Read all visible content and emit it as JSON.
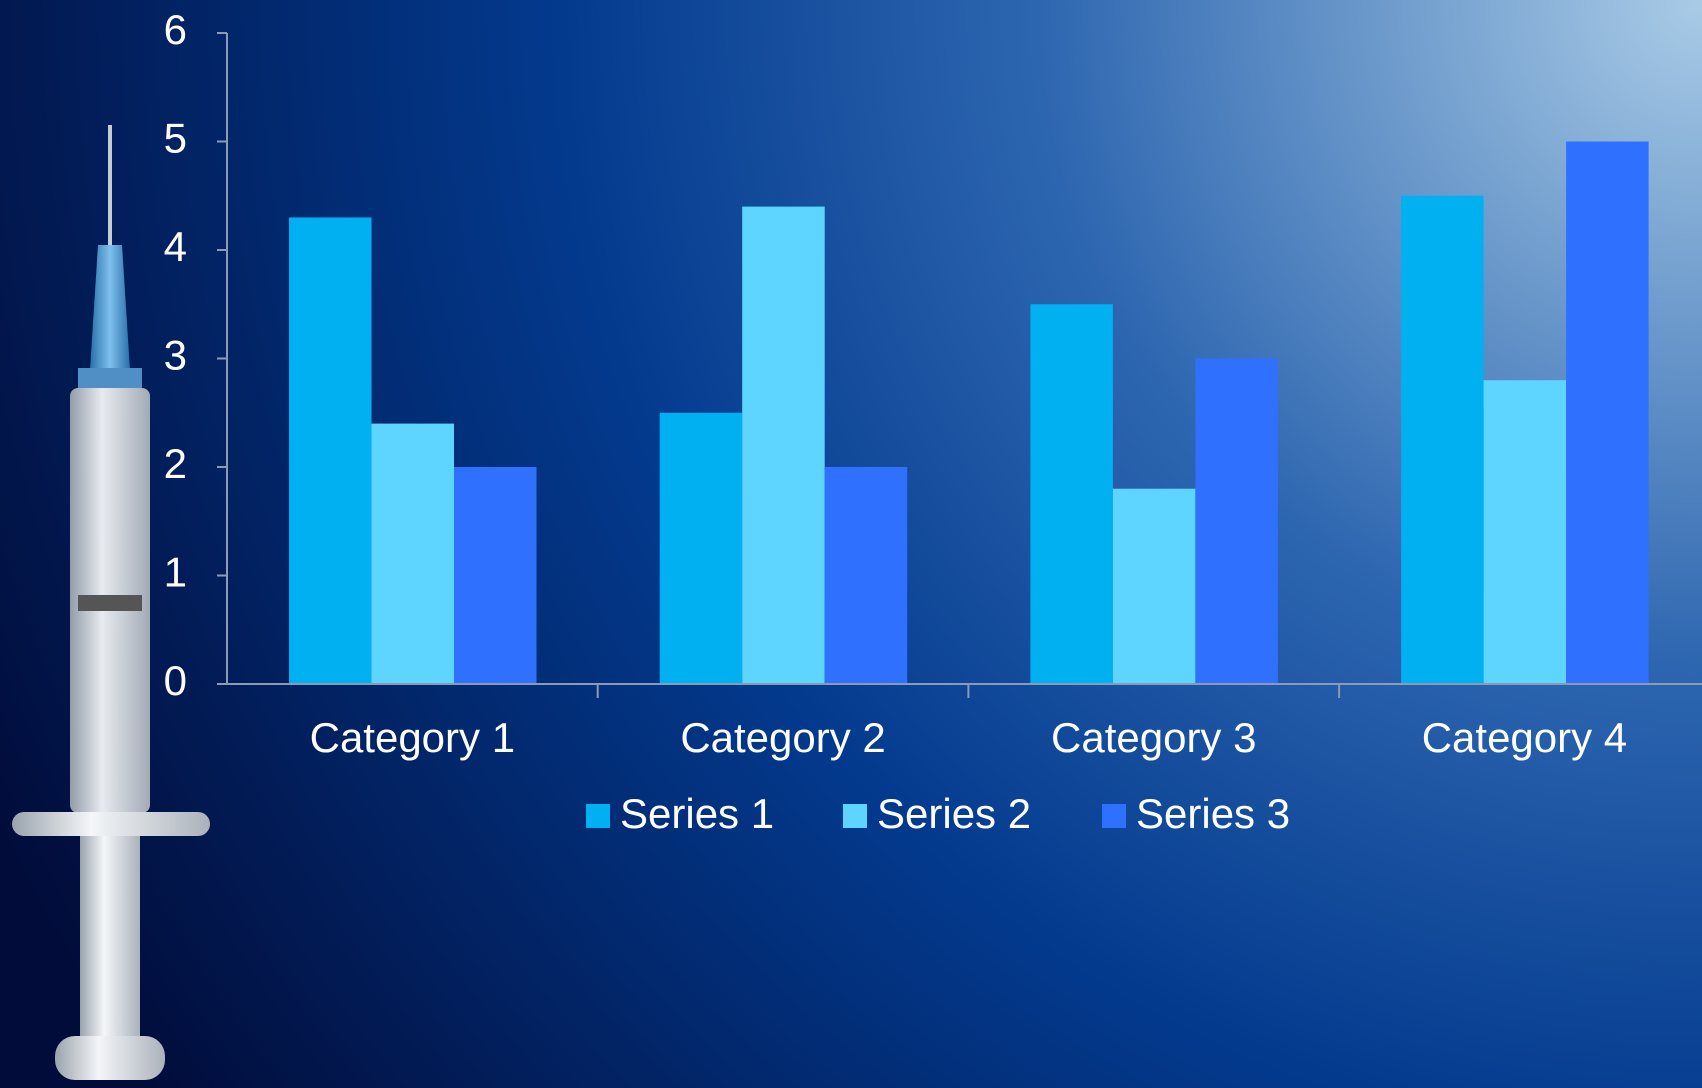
{
  "chart_data": {
    "type": "bar",
    "categories": [
      "Category 1",
      "Category 2",
      "Category 3",
      "Category 4"
    ],
    "series": [
      {
        "name": "Series 1",
        "color": "#00b0f0",
        "values": [
          4.3,
          2.5,
          3.5,
          4.5
        ]
      },
      {
        "name": "Series 2",
        "color": "#5dd5ff",
        "values": [
          2.4,
          4.4,
          1.8,
          2.8
        ]
      },
      {
        "name": "Series 3",
        "color": "#3070ff",
        "values": [
          2,
          2,
          3,
          5
        ]
      }
    ],
    "ylim": [
      0,
      6
    ],
    "yticks": [
      0,
      1,
      2,
      3,
      4,
      5,
      6
    ],
    "grid": false,
    "legend": "bottom"
  }
}
